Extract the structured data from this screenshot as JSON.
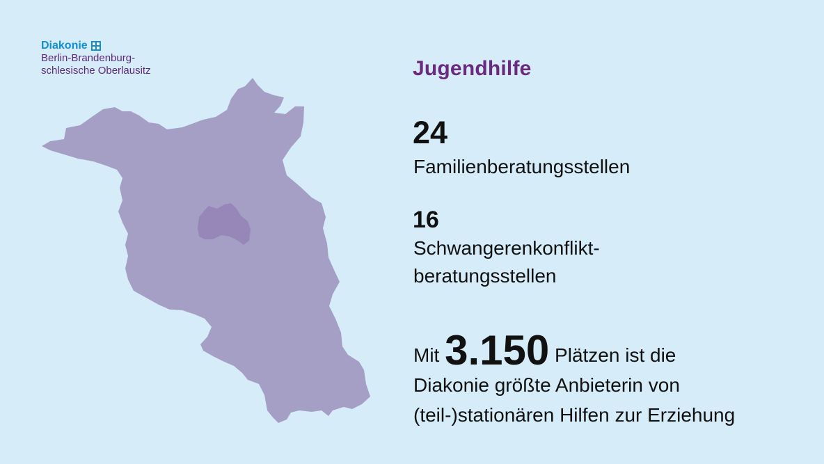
{
  "logo": {
    "brand": "Diakonie",
    "line1": "Berlin-Brandenburg-",
    "line2": "schlesische Oberlausitz",
    "brand_color": "#0f8fd6",
    "text_color": "#5a2a78"
  },
  "map": {
    "icon": "map-brandenburg-berlin-icon",
    "region_color": "#a59fc5",
    "inner_region_color": "#9787b8"
  },
  "title": "Jugendhilfe",
  "stats": [
    {
      "number": "24",
      "label": "Familienberatungsstellen"
    },
    {
      "number": "16",
      "label_line1": "Schwangerenkonflikt-",
      "label_line2": "beratungsstellen"
    }
  ],
  "summary": {
    "prefix": "Mit",
    "highlight": "3.150",
    "suffix": "Plätzen ist die",
    "line2": "Diakonie größte Anbieterin von",
    "line3": "(teil-)stationären Hilfen zur Erziehung"
  },
  "colors": {
    "background": "#d6ecf8",
    "title": "#6a2a7e",
    "text": "#111111"
  }
}
